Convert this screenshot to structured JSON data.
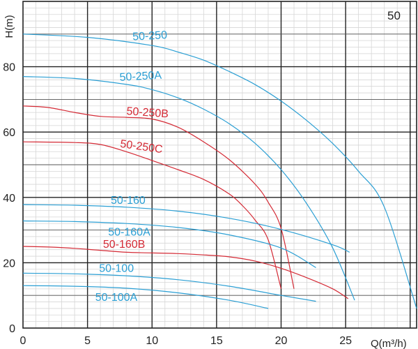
{
  "chart_data": {
    "type": "line",
    "title": "",
    "model": "50",
    "xlabel": "Q(m³/h)",
    "ylabel": "H(m)",
    "xlim": [
      0,
      30.5
    ],
    "ylim": [
      0,
      100
    ],
    "x_ticks": [
      0,
      5,
      10,
      15,
      20,
      25
    ],
    "y_ticks": [
      0,
      20,
      40,
      60,
      80
    ],
    "grid": true,
    "colors": {
      "blue": "#2b9fd4",
      "red": "#d42a35"
    },
    "series": [
      {
        "name": "50-250",
        "color": "#2b9fd4",
        "x": [
          0,
          5,
          10,
          12,
          14,
          16,
          18,
          20,
          22,
          24,
          26,
          28,
          30.5
        ],
        "y": [
          90,
          89,
          86.5,
          84.5,
          82,
          78.5,
          74.5,
          69.5,
          63.5,
          56.5,
          48,
          37,
          6
        ]
      },
      {
        "name": "50-250A",
        "color": "#2b9fd4",
        "x": [
          0,
          4,
          8,
          10,
          12,
          14,
          16,
          18,
          20,
          22,
          24,
          25.7
        ],
        "y": [
          77,
          76.4,
          74.6,
          73,
          70.5,
          67,
          62.5,
          56.5,
          48.5,
          38,
          24.5,
          8.5
        ]
      },
      {
        "name": "50-250B",
        "color": "#d42a35",
        "x": [
          0,
          2,
          4,
          6,
          8,
          10,
          12,
          14,
          16,
          18,
          19,
          20,
          21
        ],
        "y": [
          68,
          67.5,
          66,
          64.8,
          64.5,
          64,
          61.5,
          57,
          51.5,
          44,
          38.5,
          30.5,
          12
        ]
      },
      {
        "name": "50-250C",
        "color": "#d42a35",
        "x": [
          0,
          4,
          6,
          8,
          10,
          12,
          14,
          16,
          17,
          18,
          19,
          20
        ],
        "y": [
          57,
          56.8,
          56.2,
          54,
          51.3,
          48.5,
          45.5,
          41,
          37.5,
          33,
          27,
          12
        ]
      },
      {
        "name": "50-160",
        "color": "#2b9fd4",
        "x": [
          0,
          4,
          8,
          12,
          16,
          20,
          24,
          25.3
        ],
        "y": [
          37.8,
          37.6,
          37,
          35.8,
          33.6,
          30.2,
          25.5,
          23.2
        ]
      },
      {
        "name": "50-160A",
        "color": "#2b9fd4",
        "x": [
          0,
          4,
          8,
          12,
          16,
          20,
          22.7
        ],
        "y": [
          32.8,
          32.6,
          32,
          30.8,
          28.5,
          24.5,
          18.5
        ]
      },
      {
        "name": "50-160B",
        "color": "#d42a35",
        "x": [
          0,
          2,
          4,
          6,
          8,
          10,
          12,
          14,
          16,
          18,
          20,
          22,
          24,
          25.2
        ],
        "y": [
          25,
          24.8,
          24.4,
          23.8,
          23.2,
          23,
          22.8,
          22.4,
          21.8,
          20.5,
          18.3,
          15.4,
          12,
          9
        ]
      },
      {
        "name": "50-100",
        "color": "#2b9fd4",
        "x": [
          0,
          4,
          8,
          12,
          16,
          20,
          22.7
        ],
        "y": [
          16.8,
          16.6,
          16,
          14.8,
          12.8,
          10,
          8.2
        ]
      },
      {
        "name": "50-100A",
        "color": "#2b9fd4",
        "x": [
          0,
          4,
          8,
          12,
          16,
          19
        ],
        "y": [
          13,
          12.8,
          12.2,
          10.8,
          8.5,
          6
        ]
      }
    ]
  }
}
